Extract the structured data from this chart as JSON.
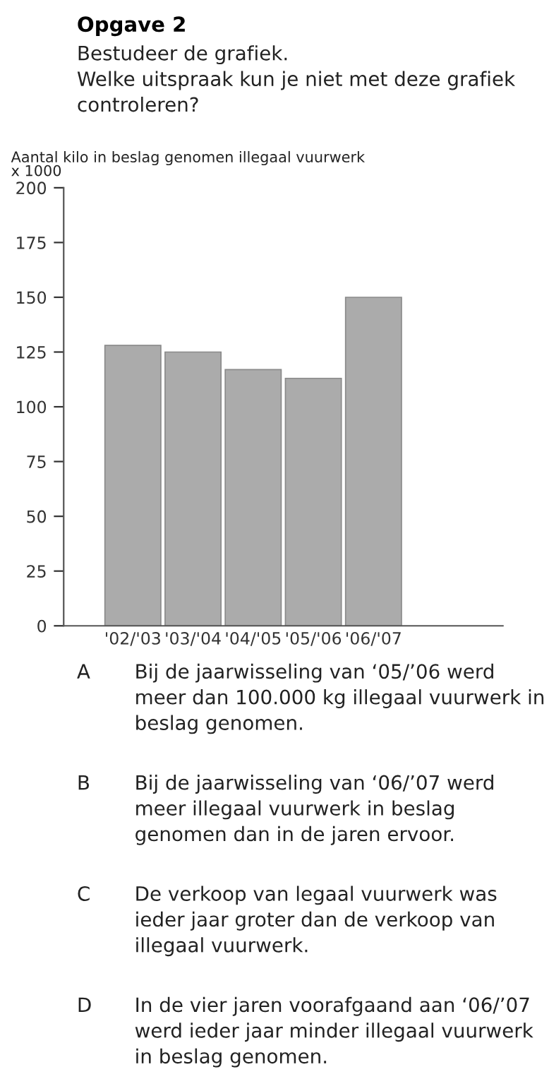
{
  "chart_data": {
    "type": "bar",
    "title": "Opgave 2",
    "subtitle": "Bestudeer de grafiek.\nWelke uitspraak kun je niet met deze grafiek controleren?",
    "ylabel": "Aantal kilo in beslag genomen illegaal vuurwerk\nx 1000",
    "categories": [
      "'02/'03",
      "'03/'04",
      "'04/'05",
      "'05/'06",
      "'06/'07"
    ],
    "values": [
      128,
      125,
      117,
      113,
      150
    ],
    "color": "#ababab",
    "ylim": [
      0,
      200
    ],
    "yticks": [
      0,
      25,
      50,
      75,
      100,
      125,
      150,
      175,
      200
    ],
    "grid": false,
    "legend": false,
    "annotations": [
      "A Bij de jaarwisseling van ‘05/’06 werd meer dan 100.000 kg illegaal vuurwerk in beslag genomen.",
      "B Bij de jaarwisseling van ‘06/’07 werd meer illegaal vuurwerk in beslag genomen dan in de jaren ervoor.",
      "C De verkoop van legaal vuurwerk was ieder jaar groter dan de verkoop van illegaal vuurwerk.",
      "D In de vier jaren voorafgaand aan ‘06/’07 werd ieder jaar minder illegaal vuurwerk in beslag genomen."
    ]
  }
}
